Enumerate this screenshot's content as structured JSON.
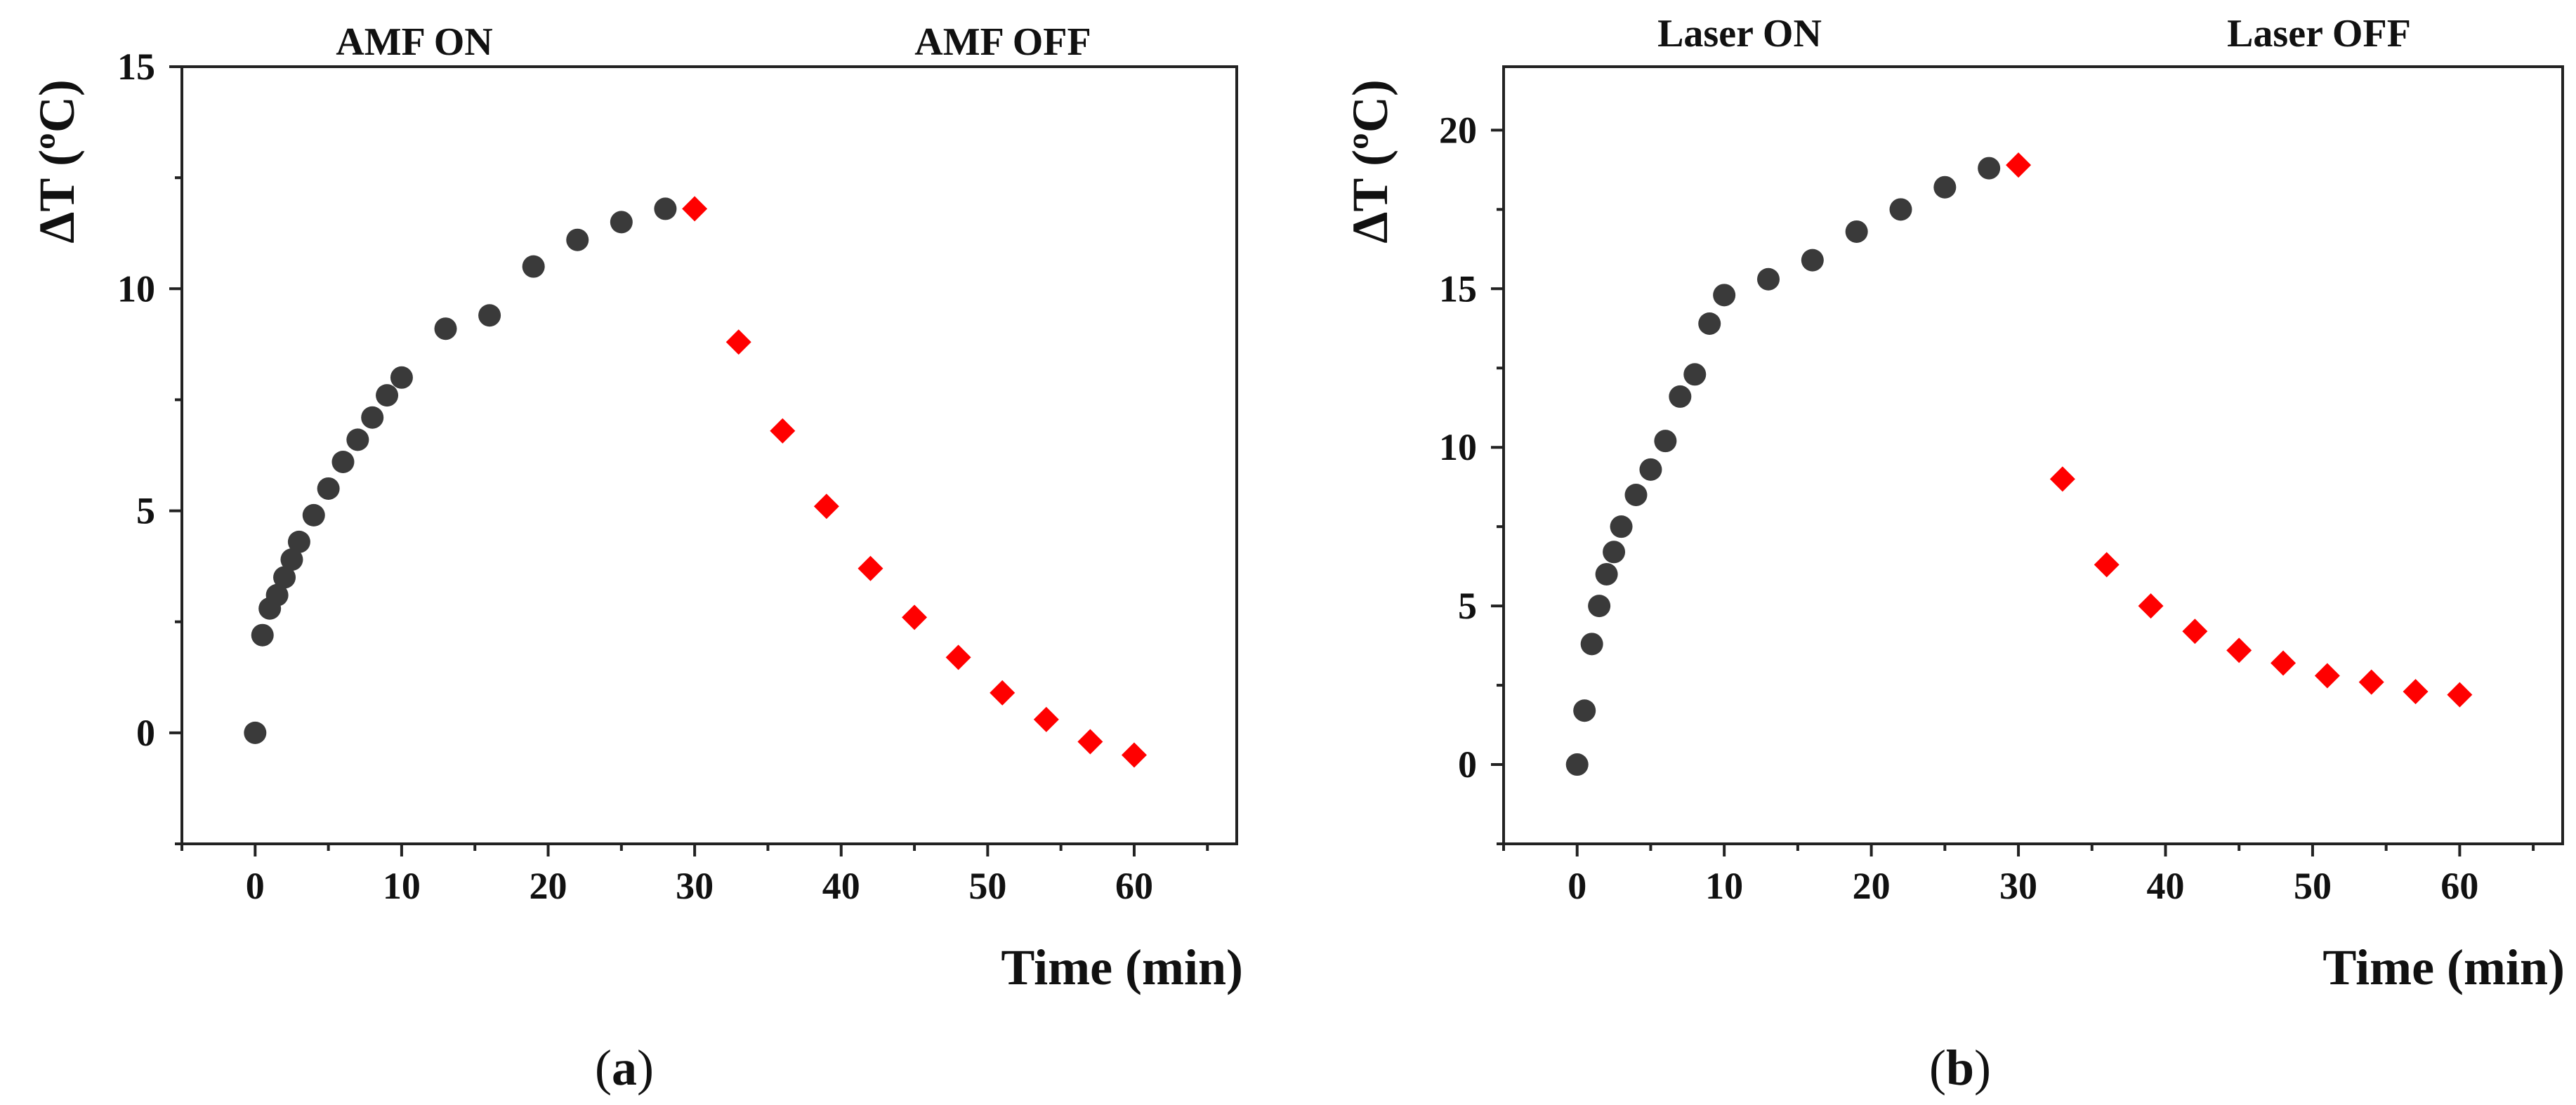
{
  "chart_data": [
    {
      "type": "scatter",
      "panel": "a",
      "panel_label": "(a)",
      "panel_letter": "a",
      "title": "",
      "xlabel": "Time (min)",
      "ylabel": "ΔT (ºC)",
      "xlim": [
        -5,
        67
      ],
      "ylim": [
        -2.5,
        15
      ],
      "xticks": [
        0,
        10,
        20,
        30,
        40,
        50,
        60
      ],
      "yticks": [
        0,
        5,
        10,
        15
      ],
      "grid": false,
      "annotations": [
        {
          "text": "AMF ON",
          "x": 11
        },
        {
          "text": "AMF OFF",
          "x": 47
        }
      ],
      "series": [
        {
          "name": "AMF ON",
          "marker": "circle",
          "color": "#3a3a3a",
          "x": [
            0,
            0.5,
            1,
            1.5,
            2,
            2.5,
            3,
            4,
            5,
            6,
            7,
            8,
            9,
            10,
            13,
            16,
            19,
            22,
            25,
            28
          ],
          "y": [
            0,
            2.2,
            2.8,
            3.1,
            3.5,
            3.9,
            4.3,
            4.9,
            5.5,
            6.1,
            6.6,
            7.1,
            7.6,
            8.0,
            9.1,
            9.4,
            10.5,
            11.1,
            11.5,
            11.8
          ]
        },
        {
          "name": "AMF OFF",
          "marker": "diamond",
          "color": "#ff0000",
          "x": [
            30,
            33,
            36,
            39,
            42,
            45,
            48,
            51,
            54,
            57,
            60
          ],
          "y": [
            11.8,
            8.8,
            6.8,
            5.1,
            3.7,
            2.6,
            1.7,
            0.9,
            0.3,
            -0.2,
            -0.5
          ]
        }
      ]
    },
    {
      "type": "scatter",
      "panel": "b",
      "panel_label": "(b)",
      "panel_letter": "b",
      "title": "",
      "xlabel": "Time (min)",
      "ylabel": "ΔT (ºC)",
      "xlim": [
        -5,
        67
      ],
      "ylim": [
        -2.5,
        22
      ],
      "xticks": [
        0,
        10,
        20,
        30,
        40,
        50,
        60
      ],
      "yticks": [
        0,
        5,
        10,
        15,
        20
      ],
      "grid": false,
      "annotations": [
        {
          "text": "Laser ON",
          "x": 12
        },
        {
          "text": "Laser OFF",
          "x": 47
        }
      ],
      "series": [
        {
          "name": "Laser ON",
          "marker": "circle",
          "color": "#3a3a3a",
          "x": [
            0,
            0.5,
            1,
            1.5,
            2,
            2.5,
            3,
            4,
            5,
            6,
            7,
            8,
            9,
            10,
            13,
            16,
            19,
            22,
            25,
            28
          ],
          "y": [
            0,
            1.7,
            3.8,
            5.0,
            6.0,
            6.7,
            7.5,
            8.5,
            9.3,
            10.2,
            11.6,
            12.3,
            13.9,
            14.8,
            15.3,
            15.9,
            16.8,
            17.5,
            18.2,
            18.8
          ]
        },
        {
          "name": "Laser OFF",
          "marker": "diamond",
          "color": "#ff0000",
          "x": [
            30,
            33,
            36,
            39,
            42,
            45,
            48,
            51,
            54,
            57,
            60
          ],
          "y": [
            18.9,
            9.0,
            6.3,
            5.0,
            4.2,
            3.6,
            3.2,
            2.8,
            2.6,
            2.3,
            2.2
          ]
        }
      ]
    }
  ]
}
